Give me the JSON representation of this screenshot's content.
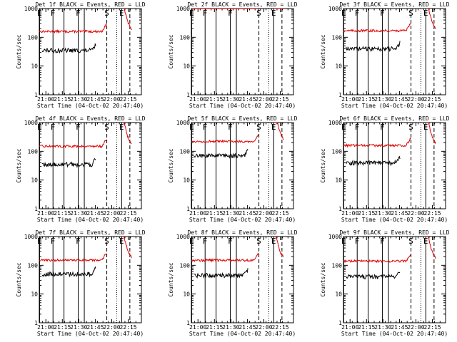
{
  "chart_data": {
    "type": "line",
    "layout": "3x3 grid",
    "colors": {
      "events": "#000000",
      "lld": "#e00000",
      "background": "#ffffff"
    },
    "common": {
      "ylabel": "Counts/sec",
      "xlabel": "Start Time (04-Oct-02 20:47:40)",
      "yscale": "log",
      "ylim": [
        1,
        1000
      ],
      "yticks": [
        "1",
        "10",
        "100",
        "1000"
      ],
      "xlim_min": [
        7,
        100
      ],
      "xticks": [
        {
          "value": 13,
          "label": "21:00"
        },
        {
          "value": 28,
          "label": "21:15"
        },
        {
          "value": 43,
          "label": "21:30"
        },
        {
          "value": 58,
          "label": "21:45"
        },
        {
          "value": 73,
          "label": "22:00"
        },
        {
          "value": 88,
          "label": "22:15"
        }
      ],
      "markers": [
        {
          "label": "E",
          "value": 7.3,
          "style": "solid"
        },
        {
          "label": "F",
          "value": 19.5,
          "style": "solid"
        },
        {
          "label": "",
          "value": 29.5,
          "style": "solid"
        },
        {
          "label": "F",
          "value": 42.5,
          "style": "solid"
        },
        {
          "label": "",
          "value": 48,
          "style": "solid"
        },
        {
          "label": "S",
          "value": 68.5,
          "style": "dashed"
        },
        {
          "label": "",
          "value": 77.5,
          "style": "dotted"
        },
        {
          "label": "E",
          "value": 82,
          "style": "solid"
        },
        {
          "label": "",
          "value": 89.5,
          "style": "dashed"
        }
      ]
    },
    "panels": [
      {
        "title": "Det 1f BLACK = Events, RED = LLD",
        "events_level": 35,
        "lld_level": 160
      },
      {
        "title": "Det 2f BLACK = Events, RED = LLD",
        "events_level": null,
        "lld_level": 1100
      },
      {
        "title": "Det 3f BLACK = Events, RED = LLD",
        "events_level": 40,
        "lld_level": 170
      },
      {
        "title": "Det 4f BLACK = Events, RED = LLD",
        "events_level": 35,
        "lld_level": 150
      },
      {
        "title": "Det 5f BLACK = Events, RED = LLD",
        "events_level": 70,
        "lld_level": 220
      },
      {
        "title": "Det 6f BLACK = Events, RED = LLD",
        "events_level": 40,
        "lld_level": 160
      },
      {
        "title": "Det 7f BLACK = Events, RED = LLD",
        "events_level": 50,
        "lld_level": 150
      },
      {
        "title": "Det 8f BLACK = Events, RED = LLD",
        "events_level": 45,
        "lld_level": 150
      },
      {
        "title": "Det 9f BLACK = Events, RED = LLD",
        "events_level": 40,
        "lld_level": 140
      }
    ]
  }
}
